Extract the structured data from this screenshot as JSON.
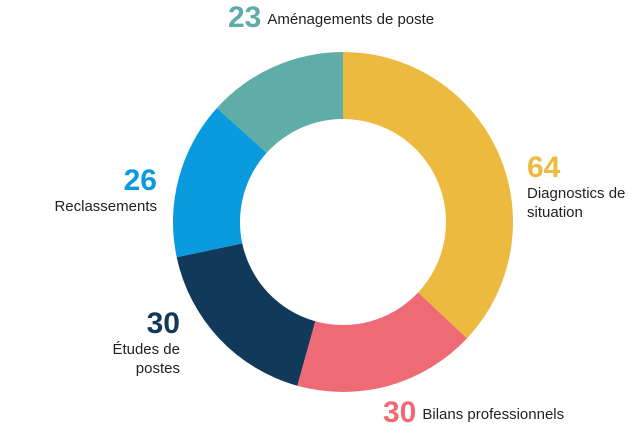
{
  "chart_data": {
    "type": "pie",
    "categories": [
      "Diagnostics de situation",
      "Bilans professionnels",
      "Études de postes",
      "Reclassements",
      "Aménagements de poste"
    ],
    "values": [
      64,
      30,
      30,
      26,
      23
    ],
    "colors": [
      "#edba40",
      "#ee6b75",
      "#12395a",
      "#0a9bdf",
      "#5eada6"
    ]
  }
}
